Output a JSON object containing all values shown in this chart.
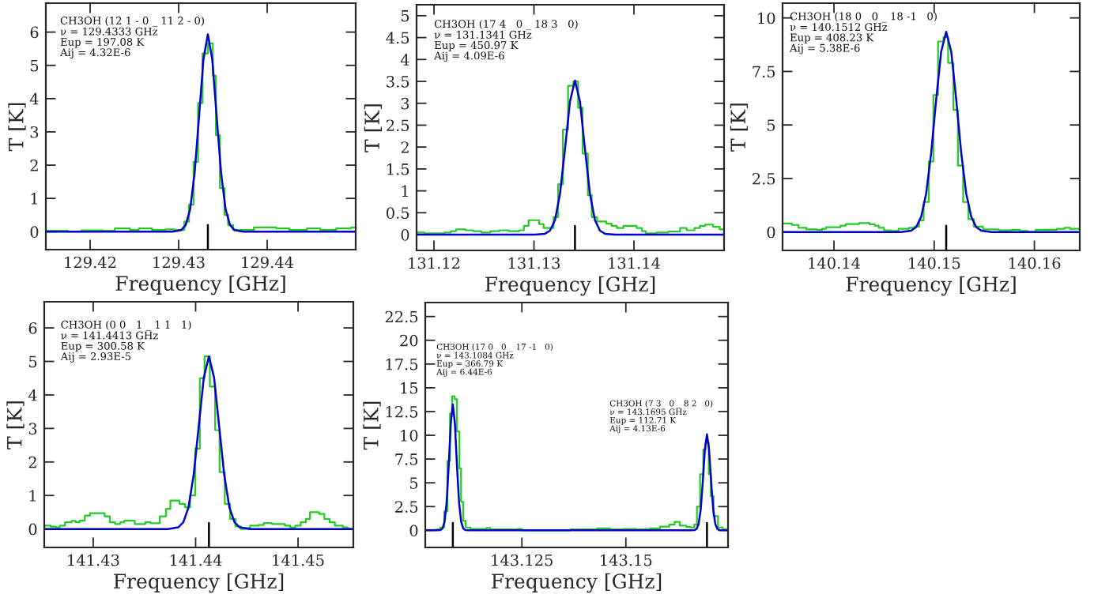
{
  "chart_data": [
    {
      "type": "line",
      "xlabel": "Frequency [GHz]",
      "ylabel": "T [K]",
      "xlim": [
        129.415,
        129.45
      ],
      "ylim": [
        -0.54,
        6.87
      ],
      "xticks": [
        129.42,
        129.43,
        129.44
      ],
      "yticks": [
        0,
        1,
        2,
        3,
        4,
        5,
        6
      ],
      "annotations": [
        "CH3OH (12 1 - 0 _ 11 2 - 0)\nν = 129.4333 GHz\nEup = 197.08 K\nAij = 4.32E-6"
      ],
      "ref_lines": [
        {
          "axis": "x",
          "value": 129.4333,
          "color": "#000000"
        }
      ],
      "series": [
        {
          "type": "step",
          "color": "#22cc22",
          "x": [
            129.415,
            129.4175,
            129.419,
            129.4215,
            129.4228,
            129.4245,
            129.4255,
            129.427,
            129.4285,
            129.4295,
            129.43064,
            129.43117,
            129.43168,
            129.43219,
            129.43269,
            129.43332,
            129.43386,
            129.43421,
            129.43466,
            129.43517,
            129.43558,
            129.43615,
            129.4385,
            129.441,
            129.4425,
            129.4445,
            129.446,
            129.4478,
            129.4495,
            129.45
          ],
          "values": [
            0.03,
            0.0,
            0.04,
            0.03,
            0.1,
            0.05,
            0.1,
            0.05,
            0.07,
            0.05,
            0.3,
            0.81,
            2.1,
            3.87,
            5.36,
            5.66,
            4.69,
            2.9,
            1.31,
            0.5,
            0.2,
            0.05,
            0.13,
            0.1,
            0.05,
            0.1,
            0.05,
            0.1,
            0.13,
            0.13
          ]
        },
        {
          "type": "line",
          "color": "#0000cc",
          "x": [
            129.415,
            129.4293,
            129.4303,
            129.4308,
            129.4313,
            129.4318,
            129.4323,
            129.4328,
            129.4333,
            129.4338,
            129.4343,
            129.4348,
            129.4353,
            129.4358,
            129.4363,
            129.4373,
            129.45
          ],
          "values": [
            0,
            0,
            0.05,
            0.2,
            0.68,
            1.75,
            3.44,
            5.18,
            5.93,
            5.18,
            3.44,
            1.75,
            0.68,
            0.2,
            0.05,
            0,
            0
          ]
        }
      ]
    },
    {
      "type": "line",
      "xlabel": "Frequency [GHz]",
      "ylabel": "T [K]",
      "xlim": [
        131.11826,
        131.14901
      ],
      "ylim": [
        -0.36,
        5.25
      ],
      "xticks": [
        131.12,
        131.13,
        131.14
      ],
      "yticks": [
        0,
        0.5,
        1,
        1.5,
        2,
        2.5,
        3,
        3.5,
        4,
        4.5,
        5
      ],
      "annotations": [
        "CH3OH (17 4   0 _ 18 3   0)\nν = 131.1341 GHz\nEup = 450.97 K\nAij = 4.09E-6"
      ],
      "ref_lines": [
        {
          "axis": "x",
          "value": 131.1341,
          "color": "#000000"
        }
      ],
      "series": [
        {
          "type": "step",
          "color": "#22cc22",
          "x": [
            131.11826,
            131.11905,
            131.12103,
            131.12169,
            131.12221,
            131.12314,
            131.12393,
            131.12472,
            131.12564,
            131.12656,
            131.12748,
            131.12854,
            131.12899,
            131.12946,
            131.13051,
            131.13096,
            131.13196,
            131.13241,
            131.13289,
            131.13341,
            131.13394,
            131.13441,
            131.13486,
            131.13539,
            131.13578,
            131.13631,
            131.13723,
            131.13776,
            131.13829,
            131.13895,
            131.14026,
            131.14079,
            131.14119,
            131.14224,
            131.14343,
            131.14461,
            131.14527,
            131.14606,
            131.14659,
            131.14712,
            131.14791,
            131.14857,
            131.14901
          ],
          "values": [
            0.05,
            0.03,
            0.05,
            0.08,
            0.12,
            0.1,
            0.08,
            0.05,
            0.08,
            0.1,
            0.08,
            0.1,
            0.2,
            0.33,
            0.24,
            0.15,
            0.4,
            1.15,
            2.4,
            3.4,
            3.5,
            2.9,
            1.85,
            0.9,
            0.4,
            0.3,
            0.25,
            0.2,
            0.15,
            0.2,
            0.15,
            0.08,
            0.03,
            0.05,
            0.07,
            0.15,
            0.1,
            0.15,
            0.2,
            0.23,
            0.18,
            0.12,
            0.12
          ]
        },
        {
          "type": "line",
          "color": "#0000cc",
          "x": [
            131.11826,
            131.1301,
            131.1311,
            131.1316,
            131.1321,
            131.1326,
            131.1331,
            131.1336,
            131.1341,
            131.1346,
            131.1351,
            131.1356,
            131.1361,
            131.1366,
            131.1371,
            131.1381,
            131.14901
          ],
          "values": [
            0,
            0,
            0.02,
            0.09,
            0.33,
            0.93,
            1.95,
            3.04,
            3.52,
            3.04,
            1.95,
            0.93,
            0.33,
            0.09,
            0.02,
            0,
            0
          ]
        }
      ]
    },
    {
      "type": "line",
      "xlabel": "Frequency [GHz]",
      "ylabel": "T [K]",
      "xlim": [
        140.13487,
        140.16453
      ],
      "ylim": [
        -0.86,
        10.69
      ],
      "xticks": [
        140.14,
        140.15,
        140.16
      ],
      "yticks": [
        0,
        2.5,
        5,
        7.5,
        10
      ],
      "annotations": [
        "CH3OH (18 0   0 _ 18 -1   0)\nν = 140.1512 GHz\nEup = 408.23 K\nAij = 5.38E-6"
      ],
      "ref_lines": [
        {
          "axis": "x",
          "value": 140.1512,
          "color": "#000000"
        }
      ],
      "series": [
        {
          "type": "step",
          "color": "#22cc22",
          "x": [
            140.13487,
            140.13579,
            140.13645,
            140.13724,
            140.13829,
            140.13882,
            140.13921,
            140.14066,
            140.14118,
            140.1425,
            140.14355,
            140.14408,
            140.14447,
            140.145,
            140.14566,
            140.14645,
            140.1475,
            140.14803,
            140.1485,
            140.14895,
            140.14947,
            140.14992,
            140.15039,
            140.15092,
            140.15139,
            140.15192,
            140.15237,
            140.15289,
            140.15342,
            140.15395,
            140.15487,
            140.15645,
            140.15776,
            140.15855,
            140.15934,
            140.16013,
            140.16118,
            140.16224,
            140.16303,
            140.16355,
            140.16453
          ],
          "values": [
            0.4,
            0.33,
            0.2,
            0.12,
            0.1,
            0.15,
            0.22,
            0.3,
            0.37,
            0.42,
            0.36,
            0.3,
            0.2,
            0.08,
            0.05,
            0.15,
            0.2,
            0.25,
            0.55,
            1.4,
            3.3,
            6.4,
            8.9,
            9.1,
            7.9,
            5.7,
            3.1,
            1.4,
            0.6,
            0.25,
            0.12,
            0.08,
            0.1,
            0.05,
            0.0,
            0.1,
            0.1,
            0.15,
            0.2,
            0.15,
            0.15
          ]
        },
        {
          "type": "line",
          "color": "#0000cc",
          "x": [
            140.13487,
            140.1467,
            140.1477,
            140.1482,
            140.1487,
            140.1492,
            140.1497,
            140.1502,
            140.1507,
            140.1512,
            140.1517,
            140.1522,
            140.1527,
            140.1532,
            140.1537,
            140.1542,
            140.1547,
            140.1557,
            140.16453
          ],
          "values": [
            0,
            0,
            0.06,
            0.23,
            0.71,
            1.79,
            3.69,
            6.19,
            8.43,
            9.35,
            8.43,
            6.19,
            3.69,
            1.79,
            0.71,
            0.23,
            0.06,
            0,
            0
          ]
        }
      ]
    },
    {
      "type": "line",
      "xlabel": "Frequency [GHz]",
      "ylabel": "T [K]",
      "xlim": [
        141.42522,
        141.4554
      ],
      "ylim": [
        -0.55,
        6.78
      ],
      "xticks": [
        141.43,
        141.44,
        141.45
      ],
      "yticks": [
        0,
        1,
        2,
        3,
        4,
        5,
        6
      ],
      "annotations": [
        "CH3OH (0 0   1 _ 1 1   1)\nν = 141.4413 GHz\nEup = 300.58 K\nAij = 2.93E-5"
      ],
      "ref_lines": [
        {
          "axis": "x",
          "value": 141.4413,
          "color": "#000000"
        }
      ],
      "series": [
        {
          "type": "step",
          "color": "#22cc22",
          "x": [
            141.42522,
            141.42584,
            141.42635,
            141.42674,
            141.42725,
            141.42789,
            141.42828,
            141.42866,
            141.42918,
            141.42969,
            141.43111,
            141.43162,
            141.43213,
            141.43265,
            141.43303,
            141.43406,
            141.43509,
            141.4356,
            141.4365,
            141.4371,
            141.43753,
            141.43843,
            141.43895,
            141.43946,
            141.43997,
            141.44041,
            141.44087,
            141.44139,
            141.4419,
            141.44234,
            141.44285,
            141.44337,
            141.44388,
            141.4444,
            141.44486,
            141.44532,
            141.44614,
            141.44666,
            141.44743,
            141.44871,
            141.44923,
            141.44974,
            141.45026,
            141.45077,
            141.45116,
            141.45206,
            141.45257,
            141.45308,
            141.4536,
            141.45437,
            141.45488,
            141.4554
          ],
          "values": [
            0.1,
            0.07,
            0.05,
            0.1,
            0.2,
            0.24,
            0.2,
            0.25,
            0.4,
            0.47,
            0.38,
            0.2,
            0.15,
            0.2,
            0.25,
            0.15,
            0.2,
            0.17,
            0.38,
            0.6,
            0.85,
            0.75,
            0.65,
            1.0,
            2.4,
            4.5,
            5.15,
            4.25,
            2.95,
            1.7,
            0.75,
            0.3,
            0.08,
            0.0,
            0.03,
            0.1,
            0.12,
            0.18,
            0.15,
            0.1,
            0.05,
            0.1,
            0.2,
            0.3,
            0.5,
            0.45,
            0.3,
            0.2,
            0.1,
            0.05,
            0.0,
            0.0
          ]
        },
        {
          "type": "line",
          "color": "#0000cc",
          "x": [
            141.42522,
            141.4373,
            141.4383,
            141.4388,
            141.4393,
            141.4398,
            141.4403,
            141.4408,
            141.4413,
            141.4418,
            141.4423,
            141.4428,
            141.4433,
            141.4438,
            141.4443,
            141.4453,
            141.4554
          ],
          "values": [
            0,
            0,
            0.05,
            0.2,
            0.64,
            1.6,
            3.06,
            4.52,
            5.15,
            4.52,
            3.06,
            1.6,
            0.64,
            0.2,
            0.05,
            0,
            0
          ]
        }
      ]
    },
    {
      "type": "line",
      "xlabel": "Frequency [GHz]",
      "ylabel": "T [K]",
      "xlim": [
        143.10177,
        143.17456
      ],
      "ylim": [
        -1.8,
        23.97
      ],
      "xticks": [
        143.125,
        143.15
      ],
      "yticks": [
        0,
        2.5,
        5,
        7.5,
        10,
        12.5,
        15,
        17.5,
        20,
        22.5
      ],
      "annotations": [
        "CH3OH (17 0   0 _ 17 -1   0)\nν = 143.1084 GHz\nEup = 366.79 K\nAij = 6.44E-6",
        "CH3OH (7 3   0 _ 8 2   0)\nν = 143.1695 GHz\nEup = 112.71 K\nAij = 4.13E-6"
      ],
      "ref_lines": [
        {
          "axis": "x",
          "value": 143.1084,
          "color": "#000000"
        },
        {
          "axis": "x",
          "value": 143.1695,
          "color": "#000000"
        }
      ],
      "series": [
        {
          "type": "step",
          "color": "#22cc22",
          "x": [
            143.10177,
            143.10443,
            143.10538,
            143.10633,
            143.10709,
            143.10772,
            143.10822,
            143.10886,
            143.10937,
            143.10999,
            143.11037,
            143.11088,
            143.1115,
            143.11266,
            143.11646,
            143.11741,
            143.12405,
            143.125,
            143.13671,
            143.14304,
            143.1462,
            143.14937,
            143.15253,
            143.1557,
            143.15823,
            143.16044,
            143.16171,
            143.16297,
            143.16456,
            143.16551,
            143.16646,
            143.16709,
            143.16785,
            143.16861,
            143.16918,
            143.16994,
            143.17044,
            143.17108,
            143.17215,
            143.17329,
            143.17456
          ],
          "values": [
            0.05,
            0.1,
            0.3,
            2.0,
            7.3,
            12.3,
            14.1,
            13.8,
            10.4,
            6.5,
            3.0,
            1.0,
            0.3,
            0.15,
            0.25,
            0.1,
            0.15,
            0.0,
            0.1,
            0.2,
            0.1,
            0.15,
            0.1,
            0.2,
            0.4,
            0.6,
            0.9,
            0.5,
            0.35,
            0.3,
            0.6,
            2.5,
            5.9,
            8.5,
            9.2,
            5.9,
            3.6,
            1.5,
            0.3,
            0.1,
            0.1
          ]
        },
        {
          "type": "line",
          "color": "#0000cc",
          "x": [
            143.10177,
            143.1044,
            143.1054,
            143.1059,
            143.1064,
            143.1069,
            143.1074,
            143.1079,
            143.1084,
            143.1089,
            143.1094,
            143.1099,
            143.1104,
            143.1109,
            143.1114,
            143.1124,
            143.1655,
            143.1665,
            143.167,
            143.1675,
            143.168,
            143.1685,
            143.169,
            143.1695,
            143.17,
            143.1705,
            143.171,
            143.1715,
            143.172,
            143.1725,
            143.1735,
            143.17456
          ],
          "values": [
            0,
            0,
            0.03,
            0.19,
            0.89,
            2.9,
            6.75,
            11.2,
            13.25,
            11.2,
            6.75,
            2.9,
            0.89,
            0.19,
            0.03,
            0,
            0,
            0.02,
            0.15,
            0.68,
            2.21,
            5.14,
            8.53,
            10.1,
            8.53,
            5.14,
            2.21,
            0.68,
            0.15,
            0.02,
            0,
            0
          ]
        }
      ]
    }
  ]
}
